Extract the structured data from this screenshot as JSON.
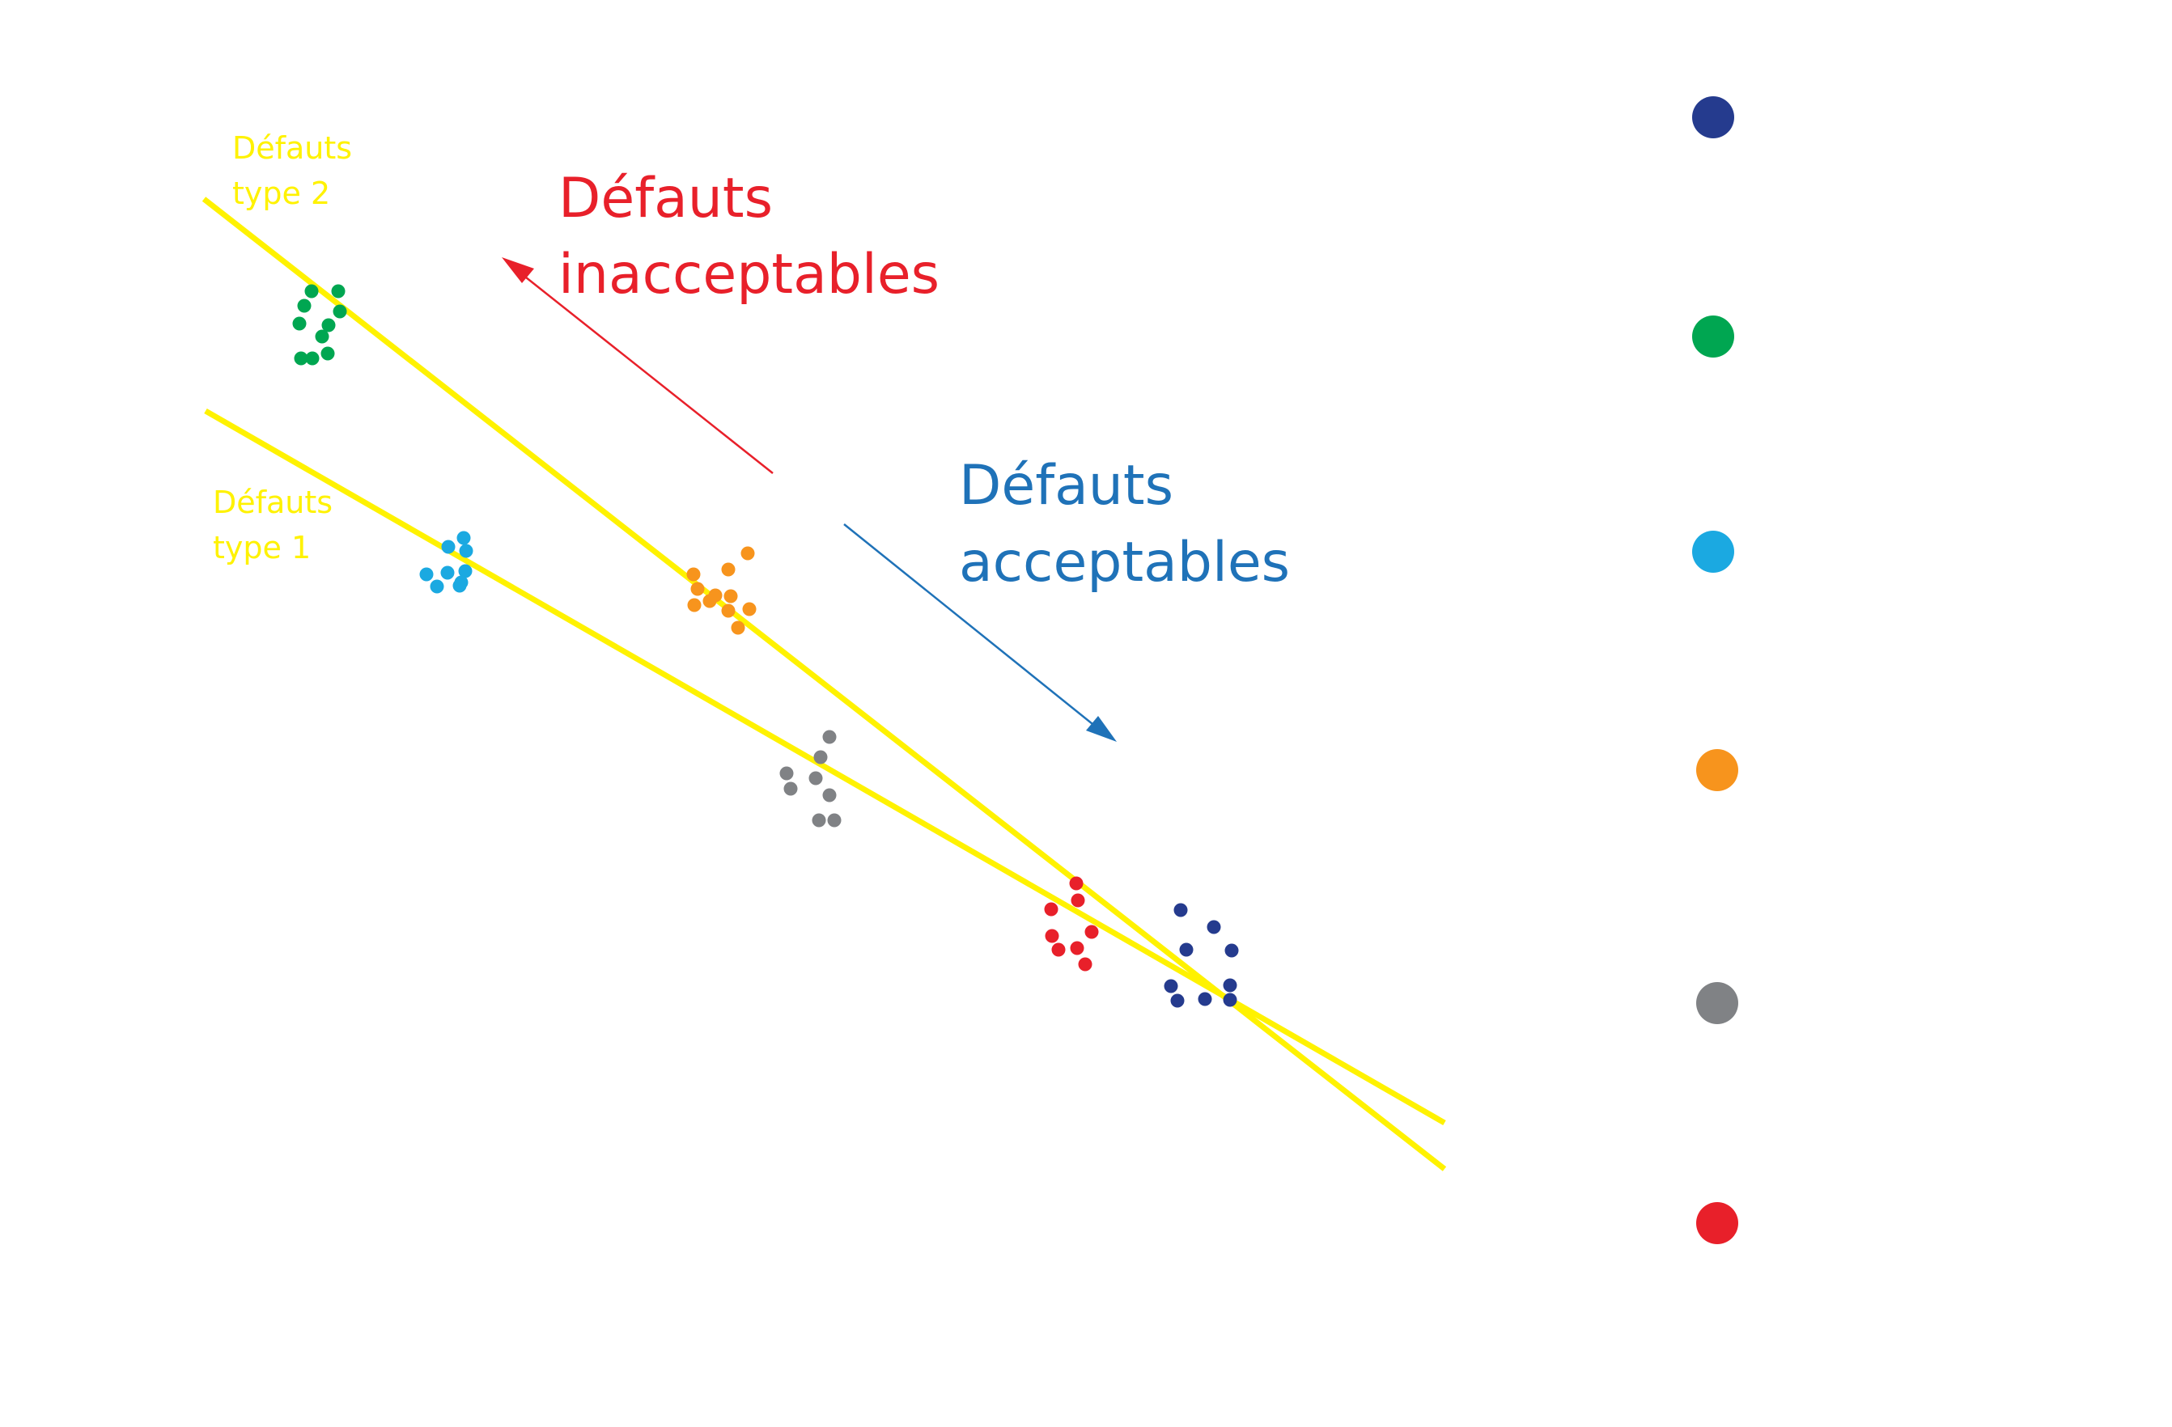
{
  "labels": {
    "unacceptable": [
      "Défauts",
      "inacceptables"
    ],
    "acceptable": [
      "Défauts",
      "acceptables"
    ],
    "type2": [
      "Défauts",
      "type 2"
    ],
    "type1": [
      "Défauts",
      "type 1"
    ]
  },
  "colors": {
    "line": "#fff200",
    "unacceptable": "#e8202a",
    "acceptable": "#1f72b8",
    "navy": "#253b8e",
    "green": "#00a651",
    "cyan": "#1ba9e1",
    "orange": "#f7941d",
    "gray": "#808285",
    "red": "#e8202a"
  },
  "legend_markers": [
    {
      "name": "navy",
      "color": "#253b8e"
    },
    {
      "name": "green",
      "color": "#00a651"
    },
    {
      "name": "cyan",
      "color": "#1ba9e1"
    },
    {
      "name": "orange",
      "color": "#f7941d"
    },
    {
      "name": "gray",
      "color": "#808285"
    },
    {
      "name": "red",
      "color": "#e8202a"
    }
  ],
  "clusters": [
    {
      "name": "green",
      "color": "#00a651",
      "points": 10
    },
    {
      "name": "cyan",
      "color": "#1ba9e1",
      "points": 9
    },
    {
      "name": "orange",
      "color": "#f7941d",
      "points": 10
    },
    {
      "name": "gray",
      "color": "#808285",
      "points": 9
    },
    {
      "name": "red",
      "color": "#e8202a",
      "points": 8
    },
    {
      "name": "navy",
      "color": "#253b8e",
      "points": 10
    }
  ]
}
